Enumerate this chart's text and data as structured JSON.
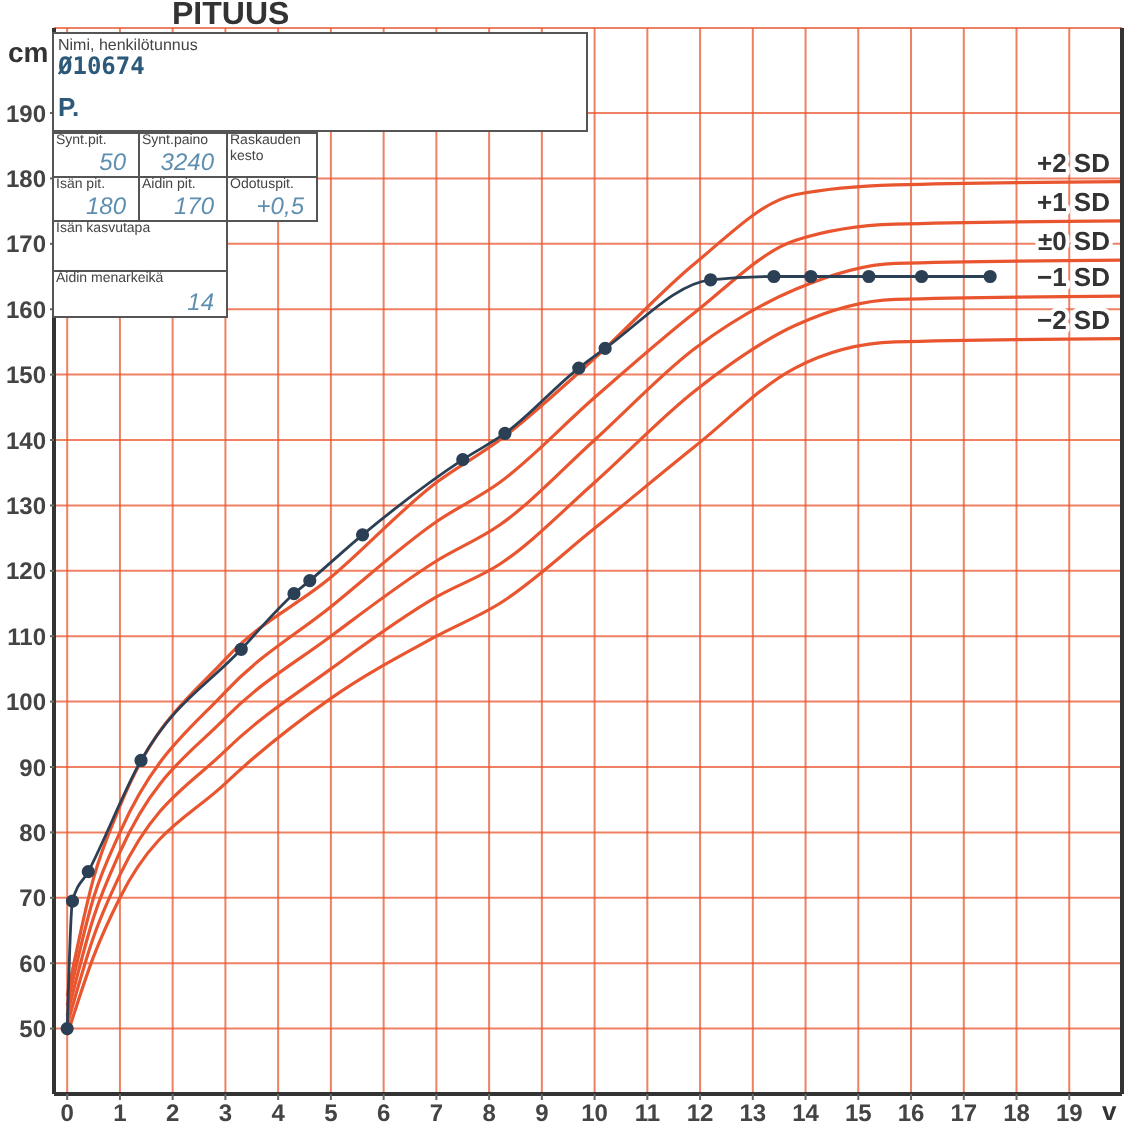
{
  "chart_data": {
    "type": "line",
    "title": "PITUUS",
    "xlabel": "v",
    "ylabel": "cm",
    "xlim": [
      -0.25,
      20
    ],
    "xticks": [
      0,
      1,
      2,
      3,
      4,
      5,
      6,
      7,
      8,
      9,
      10,
      11,
      12,
      13,
      14,
      15,
      16,
      17,
      18,
      19
    ],
    "ylim": [
      40,
      203
    ],
    "yticks": [
      50,
      60,
      70,
      80,
      90,
      100,
      110,
      120,
      130,
      140,
      150,
      160,
      170,
      180,
      190
    ],
    "grid": true,
    "line_style": "solid",
    "series": [
      {
        "name": "+2 SD",
        "color": "#e8552f",
        "marker": "none",
        "x": [
          0,
          0.5,
          1,
          3,
          5,
          7,
          8.2,
          10,
          11.9,
          13.8,
          15.7,
          20
        ],
        "values": [
          55,
          73,
          84,
          106.5,
          119,
          133.5,
          140,
          152.5,
          167,
          177.5,
          179,
          179.5
        ]
      },
      {
        "name": "+1 SD",
        "color": "#e8552f",
        "marker": "none",
        "x": [
          0,
          0.5,
          1,
          3,
          5,
          7,
          8.2,
          10,
          11.9,
          13.8,
          15.7,
          20
        ],
        "values": [
          53.5,
          70,
          80,
          101.5,
          114.5,
          127.5,
          133.5,
          146.5,
          159.5,
          170.5,
          173,
          173.5
        ]
      },
      {
        "name": "±0 SD",
        "color": "#e8552f",
        "marker": "none",
        "x": [
          0,
          0.5,
          1,
          3,
          5,
          7,
          8.2,
          10,
          11.9,
          13.8,
          15.7,
          20
        ],
        "values": [
          52,
          67,
          77,
          97.5,
          110,
          121.5,
          127,
          140,
          154,
          163,
          167,
          167.5
        ]
      },
      {
        "name": "−1 SD",
        "color": "#e8552f",
        "marker": "none",
        "x": [
          0,
          0.5,
          1,
          3,
          5,
          7,
          8.2,
          10,
          11.9,
          13.8,
          15.7,
          20
        ],
        "values": [
          50.5,
          64,
          73.5,
          92.5,
          105,
          116,
          121,
          133.5,
          147.5,
          157.5,
          161.5,
          162
        ]
      },
      {
        "name": "−2 SD",
        "color": "#e8552f",
        "marker": "none",
        "x": [
          0,
          0.5,
          1,
          3,
          5,
          7,
          8.2,
          10,
          11.9,
          13.8,
          15.7,
          20
        ],
        "values": [
          49,
          61,
          70,
          87.5,
          100.5,
          110,
          115,
          126.5,
          139,
          151,
          155,
          155.5
        ]
      },
      {
        "color": "#2b3f55",
        "marker": "circle",
        "x": [
          0,
          0.1,
          0.4,
          1.4,
          3.3,
          4.3,
          4.6,
          5.6,
          7.5,
          8.3,
          9.7,
          10.2,
          12.2,
          13.4,
          14.1,
          15.2,
          16.2,
          17.5
        ],
        "values": [
          50,
          69.5,
          74,
          91,
          108,
          116.5,
          118.5,
          125.5,
          137,
          141,
          151,
          154,
          164.5,
          165,
          165,
          165,
          165,
          165
        ]
      }
    ],
    "annotations": [
      "Nimi, henkilötunnus",
      "Ø10674",
      "P.",
      "Synt.pit.",
      "50",
      "Synt.paino",
      "3240",
      "Raskauden kesto",
      "Isän pit.",
      "180",
      "Äidin pit.",
      "170",
      "Odotuspit.",
      "+0,5",
      "Isän kasvutapa",
      "Äidin menarkeikä",
      "14"
    ]
  }
}
